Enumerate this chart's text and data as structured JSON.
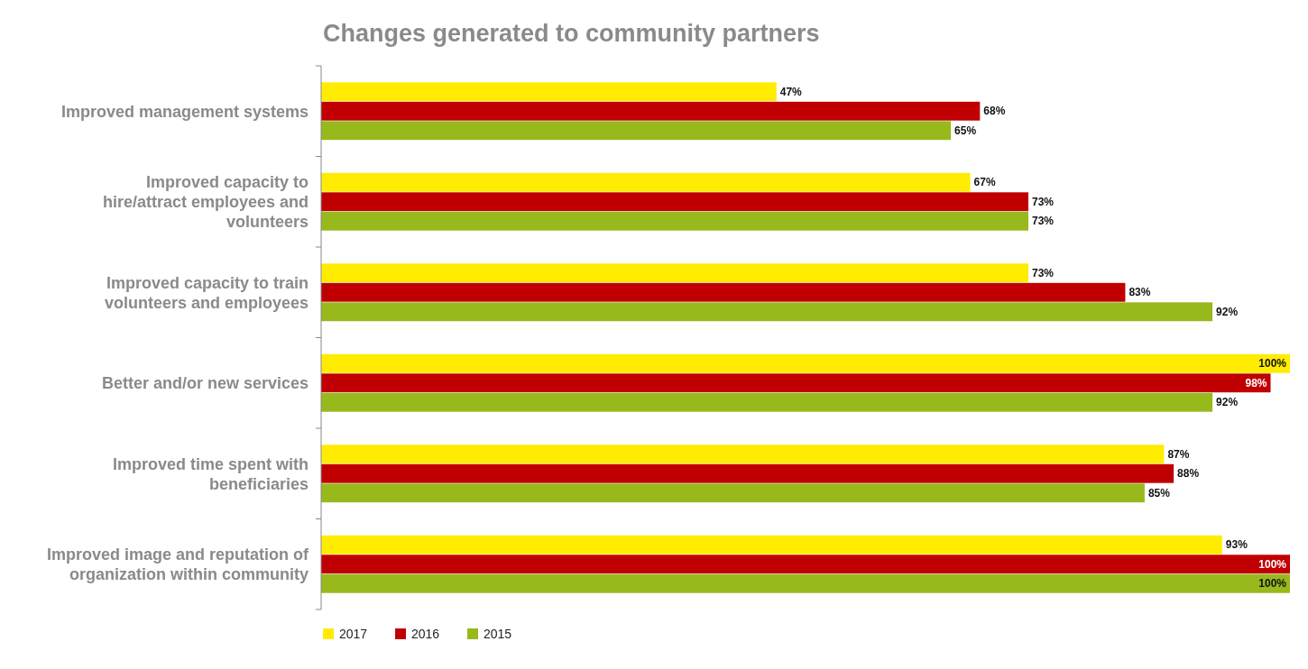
{
  "chart_data": {
    "type": "bar",
    "orientation": "horizontal",
    "title": "Changes generated to community partners",
    "categories": [
      "Improved management systems",
      "Improved capacity to hire/attract employees and volunteers",
      "Improved capacity to train volunteers and employees",
      "Better and/or new services",
      "Improved time spent with beneficiaries",
      "Improved image and reputation of organization within community"
    ],
    "series": [
      {
        "name": "2017",
        "color": "#ffec00",
        "values": [
          47,
          67,
          73,
          100,
          87,
          93
        ],
        "value_labels": [
          "47%",
          "67%",
          "73%",
          "100%",
          "87%",
          "93%"
        ]
      },
      {
        "name": "2016",
        "color": "#c00000",
        "values": [
          68,
          73,
          83,
          98,
          88,
          100
        ],
        "value_labels": [
          "68%",
          "73%",
          "83%",
          "98%",
          "88%",
          "100%"
        ]
      },
      {
        "name": "2015",
        "color": "#97b91c",
        "values": [
          65,
          73,
          92,
          92,
          85,
          100
        ],
        "value_labels": [
          "65%",
          "73%",
          "92%",
          "92%",
          "85%",
          "100%"
        ]
      }
    ],
    "legend": "bottom left"
  }
}
